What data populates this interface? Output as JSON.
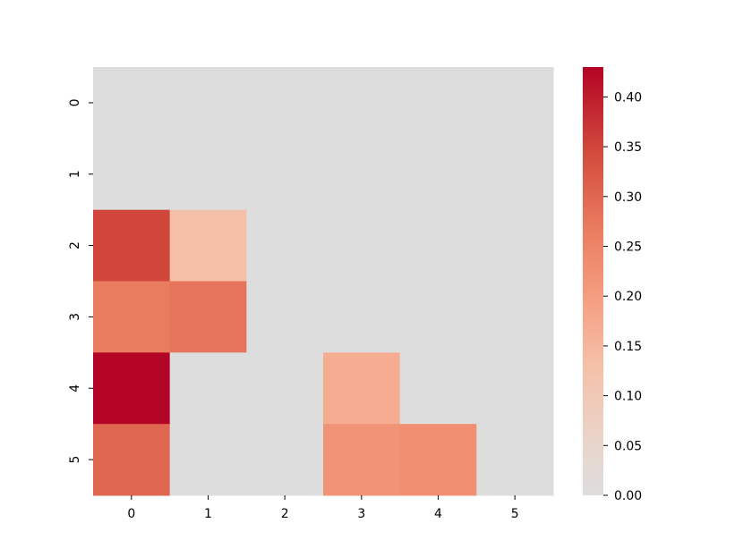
{
  "chart_data": {
    "type": "heatmap",
    "title": "",
    "xlabel": "",
    "ylabel": "",
    "x_categories": [
      "0",
      "1",
      "2",
      "3",
      "4",
      "5"
    ],
    "y_categories": [
      "0",
      "1",
      "2",
      "3",
      "4",
      "5"
    ],
    "values": [
      [
        0.0,
        0.0,
        0.0,
        0.0,
        0.0,
        0.0
      ],
      [
        0.0,
        0.0,
        0.0,
        0.0,
        0.0,
        0.0
      ],
      [
        0.35,
        0.13,
        0.0,
        0.0,
        0.0,
        0.0
      ],
      [
        0.27,
        0.28,
        0.0,
        0.0,
        0.0,
        0.0
      ],
      [
        0.43,
        0.0,
        0.0,
        0.17,
        0.0,
        0.0
      ],
      [
        0.3,
        0.0,
        0.0,
        0.22,
        0.23,
        0.0
      ]
    ],
    "colorbar": {
      "min": 0.0,
      "max": 0.43,
      "ticks": [
        "0.00",
        "0.05",
        "0.10",
        "0.15",
        "0.20",
        "0.25",
        "0.30",
        "0.35",
        "0.40"
      ]
    },
    "colormap": "coolwarm-centered",
    "colors": {
      "zero": "#dddddd",
      "low": "#f4c4a8",
      "mid": "#ec8b6c",
      "high": "#b40426"
    }
  }
}
